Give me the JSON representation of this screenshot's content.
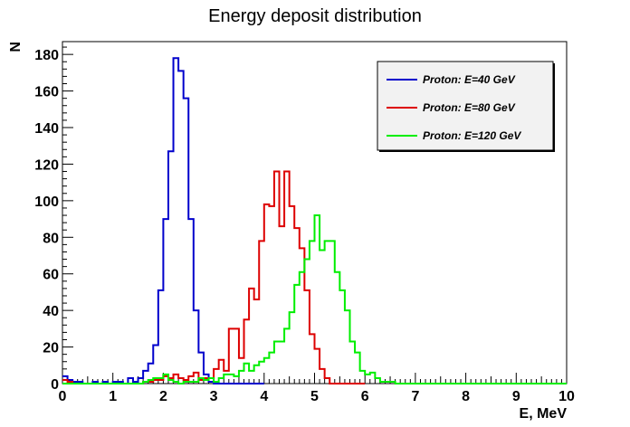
{
  "chart_data": {
    "type": "line",
    "title": "Energy deposit distribution",
    "xlabel": "E, MeV",
    "ylabel": "N",
    "xlim": [
      0,
      10
    ],
    "ylim": [
      0,
      187
    ],
    "grid": false,
    "legend_position": "top-right",
    "x_ticks": [
      "0",
      "1",
      "2",
      "3",
      "4",
      "5",
      "6",
      "7",
      "8",
      "9",
      "10"
    ],
    "y_ticks": [
      "0",
      "20",
      "40",
      "60",
      "80",
      "100",
      "120",
      "140",
      "160",
      "180"
    ],
    "bin_width": 0.1,
    "series": [
      {
        "name": "Proton: E=40 GeV",
        "color": "#0000cc",
        "bins_start": 0.0,
        "values": [
          4,
          2,
          1,
          1,
          0,
          0,
          1,
          0,
          1,
          0,
          1,
          1,
          0,
          3,
          1,
          3,
          7,
          11,
          21,
          51,
          90,
          127,
          178,
          171,
          156,
          90,
          40,
          17,
          5,
          1,
          0,
          0,
          0,
          0,
          0,
          0,
          0,
          0,
          0,
          0
        ]
      },
      {
        "name": "Proton: E=80 GeV",
        "color": "#dd0000",
        "bins_start": 0.0,
        "values": [
          2,
          1,
          0,
          0,
          0,
          0,
          0,
          0,
          0,
          0,
          0,
          0,
          0,
          0,
          0,
          0,
          1,
          1,
          2,
          2,
          4,
          3,
          5,
          3,
          2,
          4,
          6,
          2,
          3,
          3,
          8,
          13,
          7,
          30,
          30,
          14,
          35,
          52,
          46,
          78,
          98,
          97,
          116,
          86,
          116,
          97,
          85,
          74,
          51,
          27,
          19,
          8,
          3,
          0,
          0,
          0,
          0,
          0,
          0,
          0
        ]
      },
      {
        "name": "Proton: E=120 GeV",
        "color": "#00ee00",
        "bins_start": 0.0,
        "values": [
          0,
          0,
          0,
          0,
          0,
          0,
          0,
          0,
          0,
          0,
          0,
          0,
          0,
          0,
          0,
          0,
          1,
          2,
          3,
          3,
          5,
          2,
          1,
          0,
          1,
          1,
          1,
          3,
          2,
          3,
          1,
          3,
          5,
          5,
          4,
          7,
          11,
          7,
          10,
          12,
          14,
          17,
          23,
          23,
          30,
          39,
          54,
          61,
          68,
          78,
          92,
          73,
          78,
          78,
          61,
          51,
          40,
          23,
          17,
          7,
          5,
          6,
          3,
          1,
          1,
          1,
          0,
          0,
          0,
          0,
          0,
          0,
          0,
          0,
          0,
          0,
          0,
          0,
          0,
          0,
          0,
          0,
          0,
          0,
          0,
          0,
          0,
          0,
          0,
          0,
          0,
          0,
          0,
          0,
          0,
          0,
          0,
          0,
          0,
          0
        ]
      }
    ]
  }
}
